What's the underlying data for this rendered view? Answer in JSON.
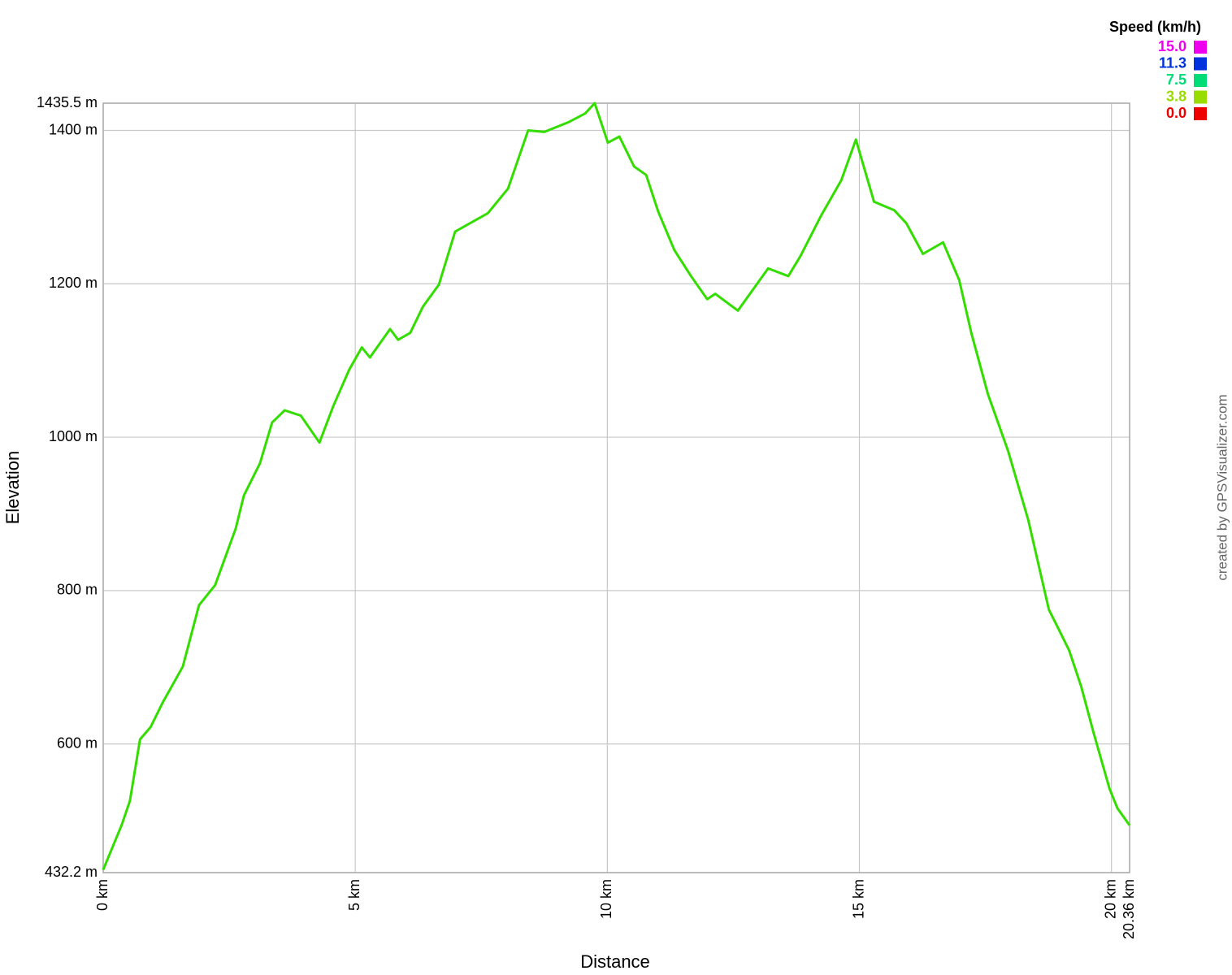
{
  "chart_data": {
    "type": "line",
    "xlabel": "Distance",
    "ylabel": "Elevation",
    "watermark": "created by GPSVisualizer.com",
    "color": "#33dd00",
    "grid": true,
    "xlim": [
      0,
      20.36
    ],
    "ylim": [
      432.2,
      1435.5
    ],
    "xticks": [
      {
        "value": 0,
        "label": "0 km"
      },
      {
        "value": 5,
        "label": "5 km"
      },
      {
        "value": 10,
        "label": "10 km"
      },
      {
        "value": 15,
        "label": "15 km"
      },
      {
        "value": 20,
        "label": "20 km"
      },
      {
        "value": 20.36,
        "label": "20.36 km"
      }
    ],
    "yticks": [
      {
        "value": 432.2,
        "label": "432.2 m"
      },
      {
        "value": 600,
        "label": "600 m"
      },
      {
        "value": 800,
        "label": "800 m"
      },
      {
        "value": 1000,
        "label": "1000 m"
      },
      {
        "value": 1200,
        "label": "1200 m"
      },
      {
        "value": 1400,
        "label": "1400 m"
      },
      {
        "value": 1435.5,
        "label": "1435.5 m"
      }
    ],
    "x": [
      0,
      0.37,
      0.53,
      0.73,
      0.94,
      1.18,
      1.58,
      1.9,
      2.22,
      2.63,
      2.79,
      3.11,
      3.35,
      3.6,
      3.92,
      4.29,
      4.56,
      4.88,
      5.13,
      5.29,
      5.69,
      5.85,
      6.09,
      6.34,
      6.66,
      6.98,
      7.63,
      8.03,
      8.43,
      8.75,
      9.24,
      9.56,
      9.75,
      10.01,
      10.24,
      10.53,
      10.77,
      11.01,
      11.33,
      11.66,
      11.98,
      12.14,
      12.59,
      13.19,
      13.59,
      13.83,
      14.24,
      14.64,
      14.93,
      15.29,
      15.69,
      15.93,
      16.26,
      16.66,
      16.98,
      17.22,
      17.55,
      17.95,
      18.35,
      18.76,
      18.92,
      19.16,
      19.4,
      19.64,
      19.96,
      20.12,
      20.36
    ],
    "values": [
      436,
      495,
      526,
      606,
      622,
      654,
      701,
      781,
      807,
      881,
      924,
      966,
      1019,
      1035,
      1028,
      993,
      1040,
      1088,
      1117,
      1104,
      1141,
      1127,
      1136,
      1170,
      1199,
      1268,
      1292,
      1324,
      1400,
      1398,
      1411,
      1422,
      1435.5,
      1384,
      1392,
      1353,
      1342,
      1294,
      1244,
      1210,
      1180,
      1187,
      1165,
      1220,
      1210,
      1236,
      1289,
      1335,
      1388,
      1307,
      1296,
      1279,
      1239,
      1254,
      1205,
      1136,
      1056,
      982,
      892,
      775,
      754,
      722,
      675,
      616,
      542,
      516,
      494
    ],
    "legend": {
      "title": "Speed (km/h)",
      "items": [
        {
          "label": "15.0",
          "color": "#ee00ee"
        },
        {
          "label": "11.3",
          "color": "#0033dd"
        },
        {
          "label": "7.5",
          "color": "#00dd77"
        },
        {
          "label": "3.8",
          "color": "#99dd00"
        },
        {
          "label": "0.0",
          "color": "#ee0000"
        }
      ]
    }
  }
}
